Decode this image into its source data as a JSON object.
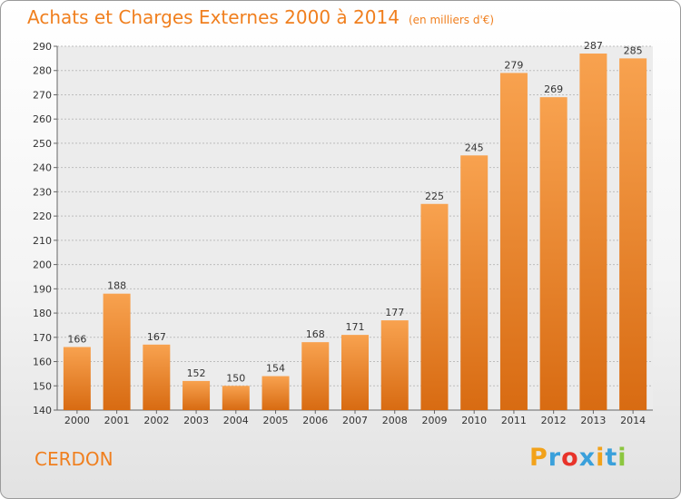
{
  "chart_data": {
    "type": "bar",
    "title": "Achats et Charges Externes 2000 à 2014",
    "subtitle": "(en milliers d'€)",
    "categories": [
      "2000",
      "2001",
      "2002",
      "2003",
      "2004",
      "2005",
      "2006",
      "2007",
      "2008",
      "2009",
      "2010",
      "2011",
      "2012",
      "2013",
      "2014"
    ],
    "values": [
      166,
      188,
      167,
      152,
      150,
      154,
      168,
      171,
      177,
      225,
      245,
      279,
      269,
      287,
      285
    ],
    "ylim": [
      140,
      290
    ],
    "yticks": [
      140,
      150,
      160,
      170,
      180,
      190,
      200,
      210,
      220,
      230,
      240,
      250,
      260,
      270,
      280,
      290
    ],
    "grid": true,
    "xlabel": "",
    "ylabel": "",
    "bar_color": "#f0892e"
  },
  "place_name": "CERDON",
  "logo": {
    "letters": [
      "P",
      "r",
      "o",
      "x",
      "i",
      "t",
      "i"
    ],
    "colors": [
      "#f2a21a",
      "#3aa0db",
      "#e8332a",
      "#3aa0db",
      "#f2a21a",
      "#3aa0db",
      "#8cc63f"
    ]
  },
  "accent_color": "#f07f1e"
}
